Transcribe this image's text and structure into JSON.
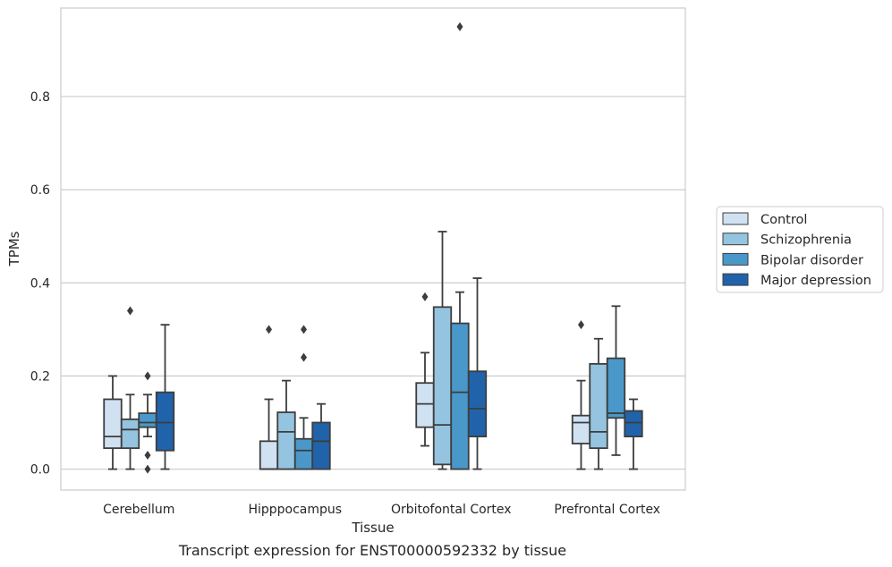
{
  "chart_data": {
    "type": "boxplot",
    "xlabel": "Tissue",
    "ylabel": "TPMs",
    "caption": "Transcript expression for ENST00000592332 by tissue",
    "ylim": [
      -0.045,
      0.99
    ],
    "yticks": [
      0.0,
      0.2,
      0.4,
      0.6,
      0.8
    ],
    "ytick_labels": [
      "0.0",
      "0.2",
      "0.4",
      "0.6",
      "0.8"
    ],
    "grid": true,
    "legend_position": "right",
    "categories": [
      "Cerebellum",
      "Hipppocampus",
      "Orbitofontal Cortex",
      "Prefrontal Cortex"
    ],
    "series": [
      {
        "name": "Control",
        "color": "#d0e1f2",
        "boxes": [
          {
            "whislo": 0.0,
            "q1": 0.045,
            "med": 0.07,
            "q3": 0.15,
            "whishi": 0.2,
            "fliers": []
          },
          {
            "whislo": 0.0,
            "q1": 0.0,
            "med": 0.0,
            "q3": 0.06,
            "whishi": 0.15,
            "fliers": [
              0.3
            ]
          },
          {
            "whislo": 0.05,
            "q1": 0.09,
            "med": 0.14,
            "q3": 0.185,
            "whishi": 0.25,
            "fliers": [
              0.37
            ]
          },
          {
            "whislo": 0.0,
            "q1": 0.055,
            "med": 0.1,
            "q3": 0.115,
            "whishi": 0.19,
            "fliers": [
              0.31
            ]
          }
        ]
      },
      {
        "name": "Schizophrenia",
        "color": "#94c4df",
        "boxes": [
          {
            "whislo": 0.0,
            "q1": 0.045,
            "med": 0.085,
            "q3": 0.107,
            "whishi": 0.16,
            "fliers": [
              0.34
            ]
          },
          {
            "whislo": 0.0,
            "q1": 0.0,
            "med": 0.08,
            "q3": 0.122,
            "whishi": 0.19,
            "fliers": []
          },
          {
            "whislo": 0.0,
            "q1": 0.01,
            "med": 0.095,
            "q3": 0.348,
            "whishi": 0.51,
            "fliers": []
          },
          {
            "whislo": 0.0,
            "q1": 0.045,
            "med": 0.08,
            "q3": 0.226,
            "whishi": 0.28,
            "fliers": []
          }
        ]
      },
      {
        "name": "Bipolar disorder",
        "color": "#4a98c9",
        "boxes": [
          {
            "whislo": 0.07,
            "q1": 0.09,
            "med": 0.1,
            "q3": 0.12,
            "whishi": 0.16,
            "fliers": [
              0.2,
              0.03,
              0.0
            ]
          },
          {
            "whislo": 0.0,
            "q1": 0.0,
            "med": 0.04,
            "q3": 0.065,
            "whishi": 0.11,
            "fliers": [
              0.3,
              0.24
            ]
          },
          {
            "whislo": 0.0,
            "q1": 0.0,
            "med": 0.165,
            "q3": 0.313,
            "whishi": 0.38,
            "fliers": [
              0.95
            ]
          },
          {
            "whislo": 0.03,
            "q1": 0.11,
            "med": 0.12,
            "q3": 0.238,
            "whishi": 0.35,
            "fliers": []
          }
        ]
      },
      {
        "name": "Major depression",
        "color": "#2163aa",
        "boxes": [
          {
            "whislo": 0.0,
            "q1": 0.04,
            "med": 0.1,
            "q3": 0.165,
            "whishi": 0.31,
            "fliers": []
          },
          {
            "whislo": 0.0,
            "q1": 0.0,
            "med": 0.06,
            "q3": 0.1,
            "whishi": 0.14,
            "fliers": []
          },
          {
            "whislo": 0.0,
            "q1": 0.07,
            "med": 0.13,
            "q3": 0.21,
            "whishi": 0.41,
            "fliers": []
          },
          {
            "whislo": 0.0,
            "q1": 0.07,
            "med": 0.1,
            "q3": 0.125,
            "whishi": 0.15,
            "fliers": []
          }
        ]
      }
    ]
  }
}
